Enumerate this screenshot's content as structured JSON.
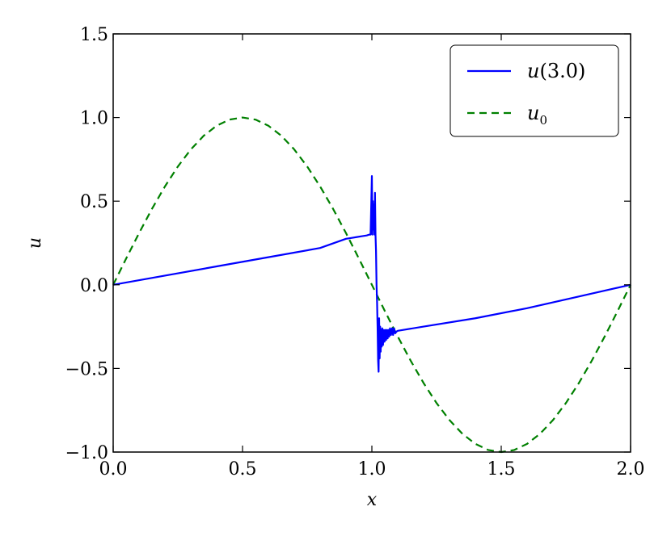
{
  "chart_data": {
    "type": "line",
    "title": "",
    "xlabel": "x",
    "ylabel": "u",
    "xlim": [
      0.0,
      2.0
    ],
    "ylim": [
      -1.0,
      1.5
    ],
    "xticks": [
      "0.0",
      "0.5",
      "1.0",
      "1.5",
      "2.0"
    ],
    "yticks": [
      "−1.0",
      "−0.5",
      "0.0",
      "0.5",
      "1.0",
      "1.5"
    ],
    "grid": false,
    "legend_position": "upper right",
    "series": [
      {
        "name": "u(3.0)",
        "style": "solid",
        "color": "#0000ff",
        "x": [
          0.0,
          0.2,
          0.4,
          0.6,
          0.8,
          0.9,
          0.92,
          0.94,
          0.96,
          0.98,
          0.99,
          0.995,
          1.0,
          1.002,
          1.004,
          1.006,
          1.008,
          1.01,
          1.012,
          1.014,
          1.016,
          1.018,
          1.02,
          1.022,
          1.024,
          1.026,
          1.028,
          1.03,
          1.032,
          1.034,
          1.036,
          1.038,
          1.04,
          1.043,
          1.046,
          1.049,
          1.052,
          1.055,
          1.058,
          1.061,
          1.064,
          1.067,
          1.07,
          1.074,
          1.078,
          1.082,
          1.086,
          1.09,
          1.095,
          1.1,
          1.2,
          1.4,
          1.6,
          1.8,
          2.0
        ],
        "y": [
          0.0,
          0.055,
          0.11,
          0.165,
          0.22,
          0.275,
          0.28,
          0.285,
          0.29,
          0.295,
          0.3,
          0.3,
          0.65,
          0.3,
          0.5,
          0.33,
          0.48,
          0.3,
          0.55,
          0.3,
          0.2,
          0.0,
          -0.1,
          -0.25,
          -0.45,
          -0.52,
          -0.2,
          -0.44,
          -0.25,
          -0.4,
          -0.27,
          -0.37,
          -0.26,
          -0.36,
          -0.27,
          -0.34,
          -0.27,
          -0.33,
          -0.27,
          -0.32,
          -0.27,
          -0.31,
          -0.26,
          -0.3,
          -0.26,
          -0.3,
          -0.26,
          -0.29,
          -0.28,
          -0.275,
          -0.25,
          -0.2,
          -0.14,
          -0.07,
          0.0
        ]
      },
      {
        "name": "u0",
        "style": "dashed",
        "color": "#008000",
        "function": "sin(pi x)",
        "x": [
          0.0,
          0.05,
          0.1,
          0.15,
          0.2,
          0.25,
          0.3,
          0.35,
          0.4,
          0.45,
          0.5,
          0.55,
          0.6,
          0.65,
          0.7,
          0.75,
          0.8,
          0.85,
          0.9,
          0.95,
          1.0,
          1.05,
          1.1,
          1.15,
          1.2,
          1.25,
          1.3,
          1.35,
          1.4,
          1.45,
          1.5,
          1.55,
          1.6,
          1.65,
          1.7,
          1.75,
          1.8,
          1.85,
          1.9,
          1.95,
          2.0
        ],
        "y": [
          0.0,
          0.1564,
          0.309,
          0.454,
          0.5878,
          0.7071,
          0.809,
          0.891,
          0.9511,
          0.9877,
          1.0,
          0.9877,
          0.9511,
          0.891,
          0.809,
          0.7071,
          0.5878,
          0.454,
          0.309,
          0.1564,
          0.0,
          -0.1564,
          -0.309,
          -0.454,
          -0.5878,
          -0.7071,
          -0.809,
          -0.891,
          -0.9511,
          -0.9877,
          -1.0,
          -0.9877,
          -0.9511,
          -0.891,
          -0.809,
          -0.7071,
          -0.5878,
          -0.454,
          -0.309,
          -0.1564,
          0.0
        ]
      }
    ],
    "legend": [
      {
        "main": "u",
        "rest": "(3.0)",
        "sub": ""
      },
      {
        "main": "u",
        "rest": "",
        "sub": "0"
      }
    ]
  }
}
